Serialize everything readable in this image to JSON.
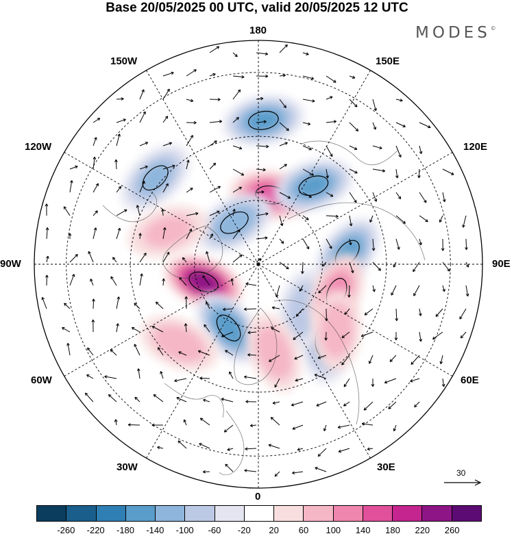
{
  "title": "Base 20/05/2025 00 UTC, valid 20/05/2025 12 UTC",
  "brand": "MODES",
  "brand_mark": "©",
  "lon_labels": {
    "top": "180",
    "bottom": "0",
    "left": "90W",
    "right": "90E",
    "upper_left_30": "150W",
    "upper_left_60": "120W",
    "upper_right_30": "150E",
    "upper_right_60": "120E",
    "lower_left_60": "60W",
    "lower_left_30": "30W",
    "lower_right_60": "60E",
    "lower_right_30": "30E"
  },
  "reference_vector": "30",
  "colorbar": {
    "ticks": [
      "-260",
      "-220",
      "-180",
      "-140",
      "-100",
      "-60",
      "-20",
      "20",
      "60",
      "100",
      "140",
      "180",
      "220",
      "260"
    ],
    "colors": [
      "#0b3d5f",
      "#1a5f8c",
      "#2f7fb4",
      "#5a9dcb",
      "#8eb6dc",
      "#bcc9e5",
      "#e4e5f1",
      "#ffffff",
      "#f8dede",
      "#f5b6c6",
      "#ef86ad",
      "#e1509b",
      "#c4258f",
      "#8e1585",
      "#5c0b73"
    ]
  },
  "anomaly_centers": [
    {
      "lat": 72,
      "lon": -72,
      "value": 240
    },
    {
      "lat": 68,
      "lon": 170,
      "value": 160
    },
    {
      "lat": 68,
      "lon": -25,
      "value": -160
    },
    {
      "lat": 62,
      "lon": 97,
      "value": -140
    },
    {
      "lat": 60,
      "lon": 145,
      "value": -140
    },
    {
      "lat": 45,
      "lon": 178,
      "value": -140
    },
    {
      "lat": 75,
      "lon": -150,
      "value": -120
    },
    {
      "lat": 48,
      "lon": -130,
      "value": -100
    },
    {
      "lat": 58,
      "lon": 40,
      "value": -100
    },
    {
      "lat": 70,
      "lon": 45,
      "value": -80
    },
    {
      "lat": 64,
      "lon": 70,
      "value": 100
    },
    {
      "lat": 58,
      "lon": 50,
      "value": 80
    },
    {
      "lat": 62,
      "lon": 10,
      "value": 80
    },
    {
      "lat": 55,
      "lon": -45,
      "value": 80
    },
    {
      "lat": 60,
      "lon": -110,
      "value": 60
    }
  ]
}
